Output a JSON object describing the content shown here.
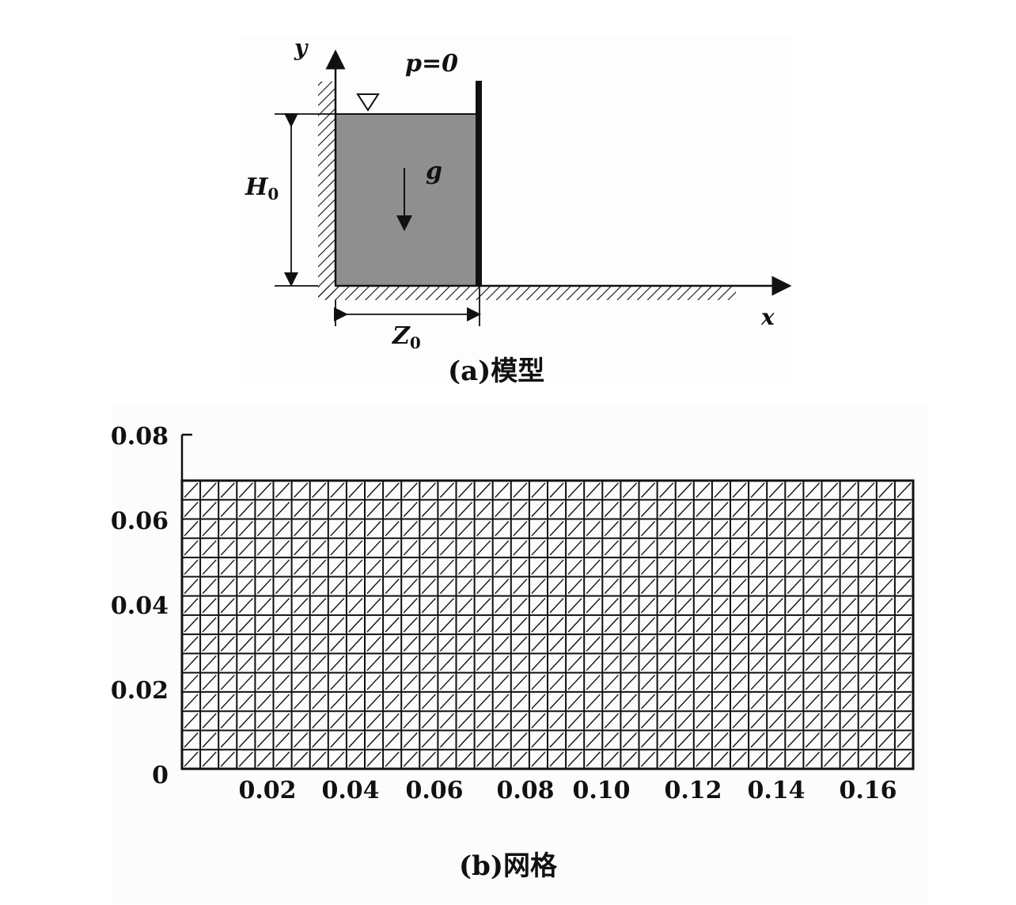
{
  "panel_a": {
    "caption": "(a)模型",
    "axis_y_label": "y",
    "axis_x_label": "x",
    "pressure_label": "p=0",
    "gravity_label": "g",
    "height_label_main": "H",
    "height_label_sub": "0",
    "width_label_main": "Z",
    "width_label_sub": "0",
    "fluid_color": "#8f8f8f"
  },
  "panel_b": {
    "caption": "(b)网格",
    "x_ticks": [
      "0.02",
      "0.04",
      "0.06",
      "0.08",
      "0.10",
      "0.12",
      "0.14",
      "0.16"
    ],
    "y_ticks": [
      "0.08",
      "0.06",
      "0.04",
      "0.02",
      "0"
    ],
    "mesh": {
      "x_range": [
        0,
        0.17
      ],
      "y_range": [
        0,
        0.069
      ],
      "columns": 40,
      "rows": 15
    }
  }
}
